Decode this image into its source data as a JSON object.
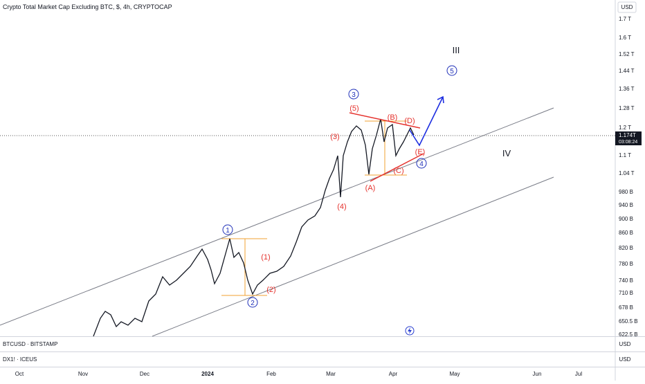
{
  "header": {
    "title": "Crypto Total Market Cap Excluding BTC, $, 4h, CRYPTOCAP"
  },
  "price_axis": {
    "unit": "USD",
    "labels": [
      "1.7 T",
      "1.6 T",
      "1.52 T",
      "1.44 T",
      "1.36 T",
      "1.28 T",
      "1.2 T",
      "1.1 T",
      "1.04 T",
      "980 B",
      "940 B",
      "900 B",
      "860 B",
      "820 B",
      "780 B",
      "740 B",
      "710 B",
      "678 B",
      "650.5 B",
      "622.5 B"
    ],
    "current_price": "1.174T",
    "countdown": "03:08:24"
  },
  "time_axis": {
    "labels": [
      "Oct",
      "Nov",
      "Dec",
      "2024",
      "Feb",
      "Mar",
      "Apr",
      "May",
      "Jun",
      "Jul"
    ]
  },
  "panes": [
    {
      "symbol": "BTCUSD · BITSTAMP",
      "unit": "USD"
    },
    {
      "symbol": "DX1! · ICEUS",
      "unit": "USD"
    }
  ],
  "waves": {
    "circled": [
      "1",
      "2",
      "3",
      "4",
      "5"
    ],
    "red": [
      "(1)",
      "(2)",
      "(3)",
      "(4)",
      "(5)",
      "(A)",
      "(B)",
      "(C)",
      "(D)",
      "(E)"
    ],
    "degree": [
      "III",
      "IV"
    ]
  }
}
